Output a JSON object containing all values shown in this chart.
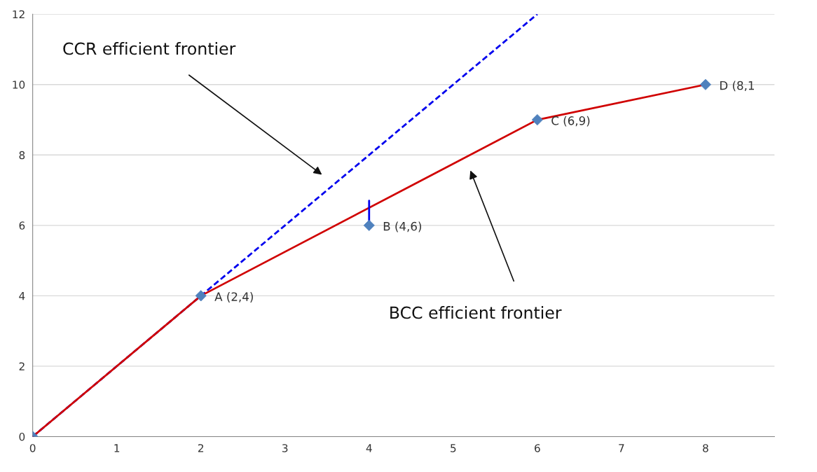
{
  "chart_data": {
    "type": "line",
    "xlim": [
      0,
      8.82
    ],
    "ylim": [
      0,
      12
    ],
    "xticks": [
      0,
      1,
      2,
      3,
      4,
      5,
      6,
      7,
      8
    ],
    "yticks": [
      0,
      2,
      4,
      6,
      8,
      10,
      12
    ],
    "grid": "y",
    "series": [
      {
        "color": "#0000ee",
        "line_style": "dashed",
        "marker": "none",
        "x": [
          0,
          6
        ],
        "values": [
          0,
          12
        ]
      },
      {
        "color": "#d00000",
        "line_style": "solid",
        "marker": "none",
        "x": [
          0,
          2,
          6,
          8
        ],
        "values": [
          0,
          4,
          9,
          10
        ]
      },
      {
        "color": "#0000ee",
        "line_style": "solid",
        "marker": "none",
        "x": [
          4,
          4
        ],
        "values": [
          6,
          6.7
        ]
      },
      {
        "type": "scatter",
        "color": "#4f81bd",
        "marker": "diamond",
        "x": [
          0,
          2,
          4,
          6,
          8
        ],
        "values": [
          0,
          4,
          6,
          9,
          10
        ]
      }
    ],
    "annotations": [
      {
        "text": "A (2,4)",
        "x": 2,
        "y": 4
      },
      {
        "text": "B (4,6)",
        "x": 4,
        "y": 6
      },
      {
        "text": "C (6,9)",
        "x": 6,
        "y": 9
      },
      {
        "text": "D (8,1",
        "x": 8,
        "y": 10
      },
      "CCR efficient frontier",
      "BCC efficient frontier"
    ]
  }
}
